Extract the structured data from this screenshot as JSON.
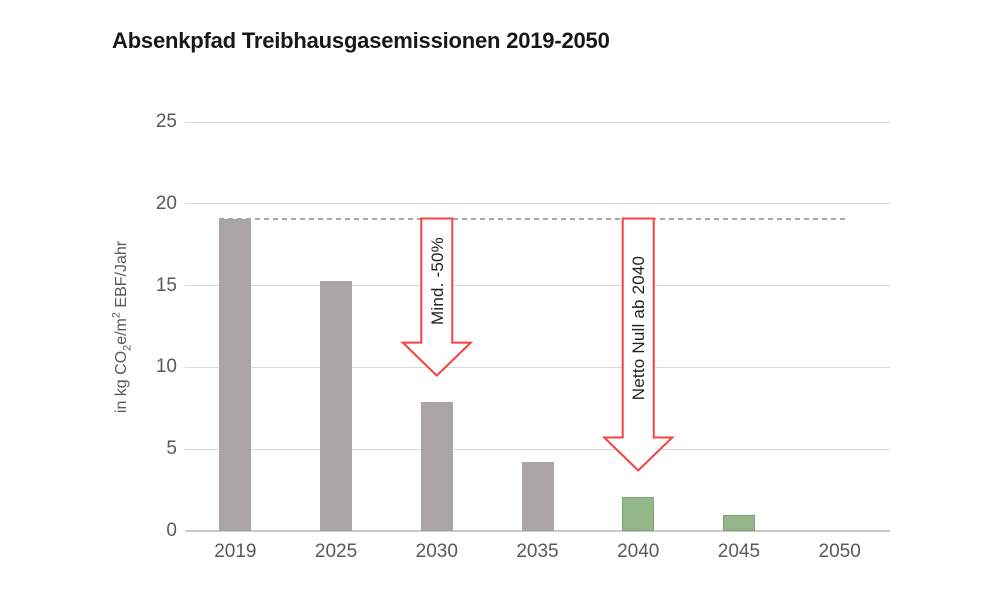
{
  "chart_data": {
    "type": "bar",
    "title": "Absenkpfad Treibhausgasemissionen 2019-2050",
    "categories": [
      "2019",
      "2025",
      "2030",
      "2035",
      "2040",
      "2045",
      "2050"
    ],
    "values": [
      19.1,
      15.3,
      7.9,
      4.2,
      2.1,
      1.0,
      0
    ],
    "bar_palette": [
      "gray",
      "gray",
      "gray",
      "gray",
      "green",
      "green",
      "none"
    ],
    "ylabel_parts": {
      "p1": "in kg CO",
      "sub": "2",
      "p2": "e/m",
      "sup": "2",
      "p3": " EBF/Jahr"
    },
    "xlabel": "",
    "ylim": [
      0,
      25
    ],
    "yticks": [
      0,
      5,
      10,
      15,
      20,
      25
    ],
    "grid": true,
    "legend": false,
    "reference_line": {
      "value": 19.1,
      "style": "dashed"
    },
    "annotations": [
      {
        "shape": "down-arrow",
        "label": "Mind. -50%",
        "category": "2030",
        "from_value": 19.1,
        "to_value": 9.5
      },
      {
        "shape": "down-arrow",
        "label": "Netto Null ab 2040",
        "category": "2040",
        "from_value": 19.1,
        "to_value": 3.7
      }
    ],
    "colors": {
      "bar_gray": "#aaa6a6",
      "bar_green": "#93b78b",
      "bar_green_border": "#7da570",
      "grid": "#d9d9d9",
      "baseline": "#c9c7c7",
      "tick_text": "#595959",
      "title_text": "#181818",
      "dash_line": "#a6a6a6",
      "arrow_red": "#f84143",
      "arrow_fill": "#ffffff",
      "annotation_text": "#222222"
    }
  }
}
